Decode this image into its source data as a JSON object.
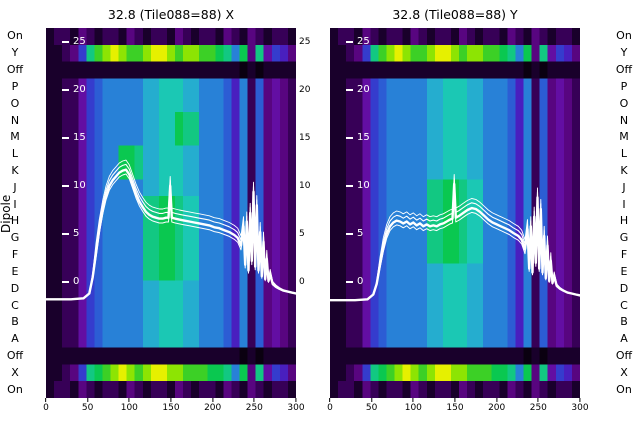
{
  "chart_data": {
    "type": "heatmap",
    "ylabel": "Dipole",
    "row_labels": [
      "On",
      "Y",
      "Off",
      "P",
      "O",
      "N",
      "M",
      "L",
      "K",
      "J",
      "I",
      "H",
      "G",
      "F",
      "E",
      "D",
      "C",
      "B",
      "A",
      "Off",
      "X",
      "On"
    ],
    "x_ticks": [
      0,
      50,
      100,
      150,
      200,
      250,
      300
    ],
    "x_range": [
      0,
      300
    ],
    "curve_y_ticks": [
      25,
      20,
      15,
      10,
      5,
      0
    ],
    "gap_y_ticks": [
      25,
      20,
      15,
      10,
      5,
      0
    ],
    "curve_color": "#ffffff",
    "colormap": [
      [
        0,
        "#0a0010"
      ],
      [
        0.08,
        "#1c0030"
      ],
      [
        0.16,
        "#45006a"
      ],
      [
        0.24,
        "#6a0a96"
      ],
      [
        0.3,
        "#5a14b4"
      ],
      [
        0.36,
        "#3c28c8"
      ],
      [
        0.44,
        "#2e50d2"
      ],
      [
        0.52,
        "#2878d8"
      ],
      [
        0.58,
        "#28a0d2"
      ],
      [
        0.64,
        "#1ec8c8"
      ],
      [
        0.72,
        "#14c88c"
      ],
      [
        0.8,
        "#0ac850"
      ],
      [
        0.88,
        "#46d21e"
      ],
      [
        0.94,
        "#96e600"
      ],
      [
        1,
        "#e6f000"
      ]
    ],
    "panels": [
      {
        "title": "32.8 (Tile088=88) X",
        "rows": [
          "1221321221321221321221321321221",
          "11236bdefeddeffedeeddcb8c3b4653",
          "1111111111111111111111110101111",
          "11224678888899aaa99888758273432",
          "11224678888899aaa99888758273432",
          "11224678888899aacbb888758273432",
          "11224678888899aacbb888758273432",
          "112246788ccb99aaa99888758273432",
          "112246788ccb99aaa99888758273432",
          "11224678888899aaa99888758273432",
          "112246788888bbccbaa888758273432",
          "112246788888bbccbaa888758273432",
          "112246788888bbccbaa888758273432",
          "112246788888bbccbaa888758273432",
          "112246788888bbccbaa888758273432",
          "11224678888899aaa99888758273432",
          "11224678888899aaa99888758273432",
          "11224678888899aaa99888758273432",
          "11224678888899aaa99888758273432",
          "1111111111111111111111110101111",
          "11236bcdefedeffeedddccb8c3b4653",
          "1221321221321221321221321321221"
        ],
        "curve": [
          [
            0,
            -1.8
          ],
          [
            30,
            -1.8
          ],
          [
            45,
            -1.7
          ],
          [
            52,
            -1.2
          ],
          [
            56,
            0.5
          ],
          [
            60,
            3
          ],
          [
            64,
            5.5
          ],
          [
            68,
            7.5
          ],
          [
            72,
            9
          ],
          [
            76,
            10
          ],
          [
            80,
            10.6
          ],
          [
            84,
            11
          ],
          [
            88,
            11.4
          ],
          [
            92,
            11.6
          ],
          [
            96,
            11.7
          ],
          [
            100,
            11.2
          ],
          [
            104,
            10.2
          ],
          [
            108,
            9.2
          ],
          [
            112,
            8.4
          ],
          [
            116,
            7.8
          ],
          [
            120,
            7.3
          ],
          [
            124,
            7
          ],
          [
            128,
            6.8
          ],
          [
            132,
            6.7
          ],
          [
            136,
            6.6
          ],
          [
            140,
            6.6
          ],
          [
            144,
            6.7
          ],
          [
            147,
            6.7
          ],
          [
            149,
            10
          ],
          [
            151,
            6.7
          ],
          [
            155,
            6.6
          ],
          [
            160,
            6.5
          ],
          [
            166,
            6.4
          ],
          [
            172,
            6.3
          ],
          [
            178,
            6.2
          ],
          [
            184,
            6.1
          ],
          [
            190,
            6
          ],
          [
            196,
            5.9
          ],
          [
            202,
            5.7
          ],
          [
            208,
            5.6
          ],
          [
            214,
            5.4
          ],
          [
            220,
            5.2
          ],
          [
            226,
            4.9
          ],
          [
            230,
            4.6
          ],
          [
            234,
            3.8
          ],
          [
            237,
            5.8
          ],
          [
            239,
            1.8
          ],
          [
            241,
            6.3
          ],
          [
            243,
            1.2
          ],
          [
            245,
            7.2
          ],
          [
            247,
            2.2
          ],
          [
            249,
            9.4
          ],
          [
            251,
            1.6
          ],
          [
            253,
            8
          ],
          [
            255,
            1.2
          ],
          [
            257,
            5.2
          ],
          [
            259,
            0.6
          ],
          [
            261,
            4.2
          ],
          [
            263,
            0.3
          ],
          [
            265,
            2.4
          ],
          [
            267,
            0.1
          ],
          [
            269,
            0.8
          ],
          [
            272,
            -0.2
          ],
          [
            276,
            -0.5
          ],
          [
            280,
            -0.7
          ],
          [
            285,
            -0.9
          ],
          [
            290,
            -1
          ],
          [
            295,
            -1.1
          ],
          [
            300,
            -1.2
          ]
        ]
      },
      {
        "title": "32.8 (Tile088=88) Y",
        "rows": [
          "1221321221321221321221321321221",
          "11236bdefeddeffedeeddcb8c3b4653",
          "1111111111111111111111110101111",
          "11224678888899aaa99888758273432",
          "11224678888899aaa99888758273432",
          "11224678888899aaa99888758273432",
          "11224678888899aaa99888758273432",
          "11224678888899aaa99888758273432",
          "11224678888899aaa99888758273432",
          "112246788888bbccbaa888758273432",
          "112246788888bbccbaa888758273432",
          "112246788888bbccbaa888758273432",
          "112246788888bbccbaa888758273432",
          "112246788888bbccbaa888758273432",
          "11224678888899aaa99888758273432",
          "11224678888899aaa99888758273432",
          "11224678888899aaa99888758273432",
          "11224678888899aaa99888758273432",
          "11224678888899aaa99888758273432",
          "1111111111111111111111110101111",
          "11236bcdefedeffeedddccb8c3b4653",
          "1221321221321221321221321321221"
        ],
        "curve": [
          [
            0,
            -1.9
          ],
          [
            30,
            -1.9
          ],
          [
            45,
            -1.8
          ],
          [
            52,
            -1.3
          ],
          [
            56,
            -0.2
          ],
          [
            60,
            1.8
          ],
          [
            64,
            3.6
          ],
          [
            68,
            5
          ],
          [
            72,
            5.8
          ],
          [
            76,
            6.2
          ],
          [
            80,
            6.4
          ],
          [
            84,
            6.3
          ],
          [
            88,
            6.1
          ],
          [
            92,
            6.3
          ],
          [
            96,
            6
          ],
          [
            100,
            6.2
          ],
          [
            104,
            5.9
          ],
          [
            108,
            6.1
          ],
          [
            112,
            5.8
          ],
          [
            116,
            6
          ],
          [
            120,
            5.8
          ],
          [
            124,
            5.9
          ],
          [
            128,
            5.8
          ],
          [
            132,
            6
          ],
          [
            136,
            6.1
          ],
          [
            140,
            6.3
          ],
          [
            144,
            6.5
          ],
          [
            147,
            6.6
          ],
          [
            149,
            10.2
          ],
          [
            151,
            6.7
          ],
          [
            155,
            6.9
          ],
          [
            160,
            7.2
          ],
          [
            165,
            7.5
          ],
          [
            170,
            7.7
          ],
          [
            175,
            7.6
          ],
          [
            180,
            7.3
          ],
          [
            185,
            6.9
          ],
          [
            190,
            6.5
          ],
          [
            195,
            6.2
          ],
          [
            200,
            6
          ],
          [
            205,
            5.8
          ],
          [
            210,
            5.6
          ],
          [
            215,
            5.4
          ],
          [
            220,
            5.1
          ],
          [
            226,
            4.8
          ],
          [
            230,
            4.4
          ],
          [
            234,
            3.4
          ],
          [
            237,
            5.5
          ],
          [
            239,
            1.4
          ],
          [
            241,
            5.8
          ],
          [
            243,
            1
          ],
          [
            245,
            6.8
          ],
          [
            247,
            2
          ],
          [
            249,
            8.8
          ],
          [
            251,
            1.4
          ],
          [
            253,
            7.6
          ],
          [
            255,
            1
          ],
          [
            257,
            4.8
          ],
          [
            259,
            0.4
          ],
          [
            261,
            3.8
          ],
          [
            263,
            0.1
          ],
          [
            265,
            2.2
          ],
          [
            267,
            -0.1
          ],
          [
            269,
            0.6
          ],
          [
            272,
            -0.4
          ],
          [
            276,
            -0.7
          ],
          [
            280,
            -0.9
          ],
          [
            285,
            -1.1
          ],
          [
            290,
            -1.2
          ],
          [
            295,
            -1.3
          ],
          [
            300,
            -1.4
          ]
        ]
      }
    ]
  }
}
